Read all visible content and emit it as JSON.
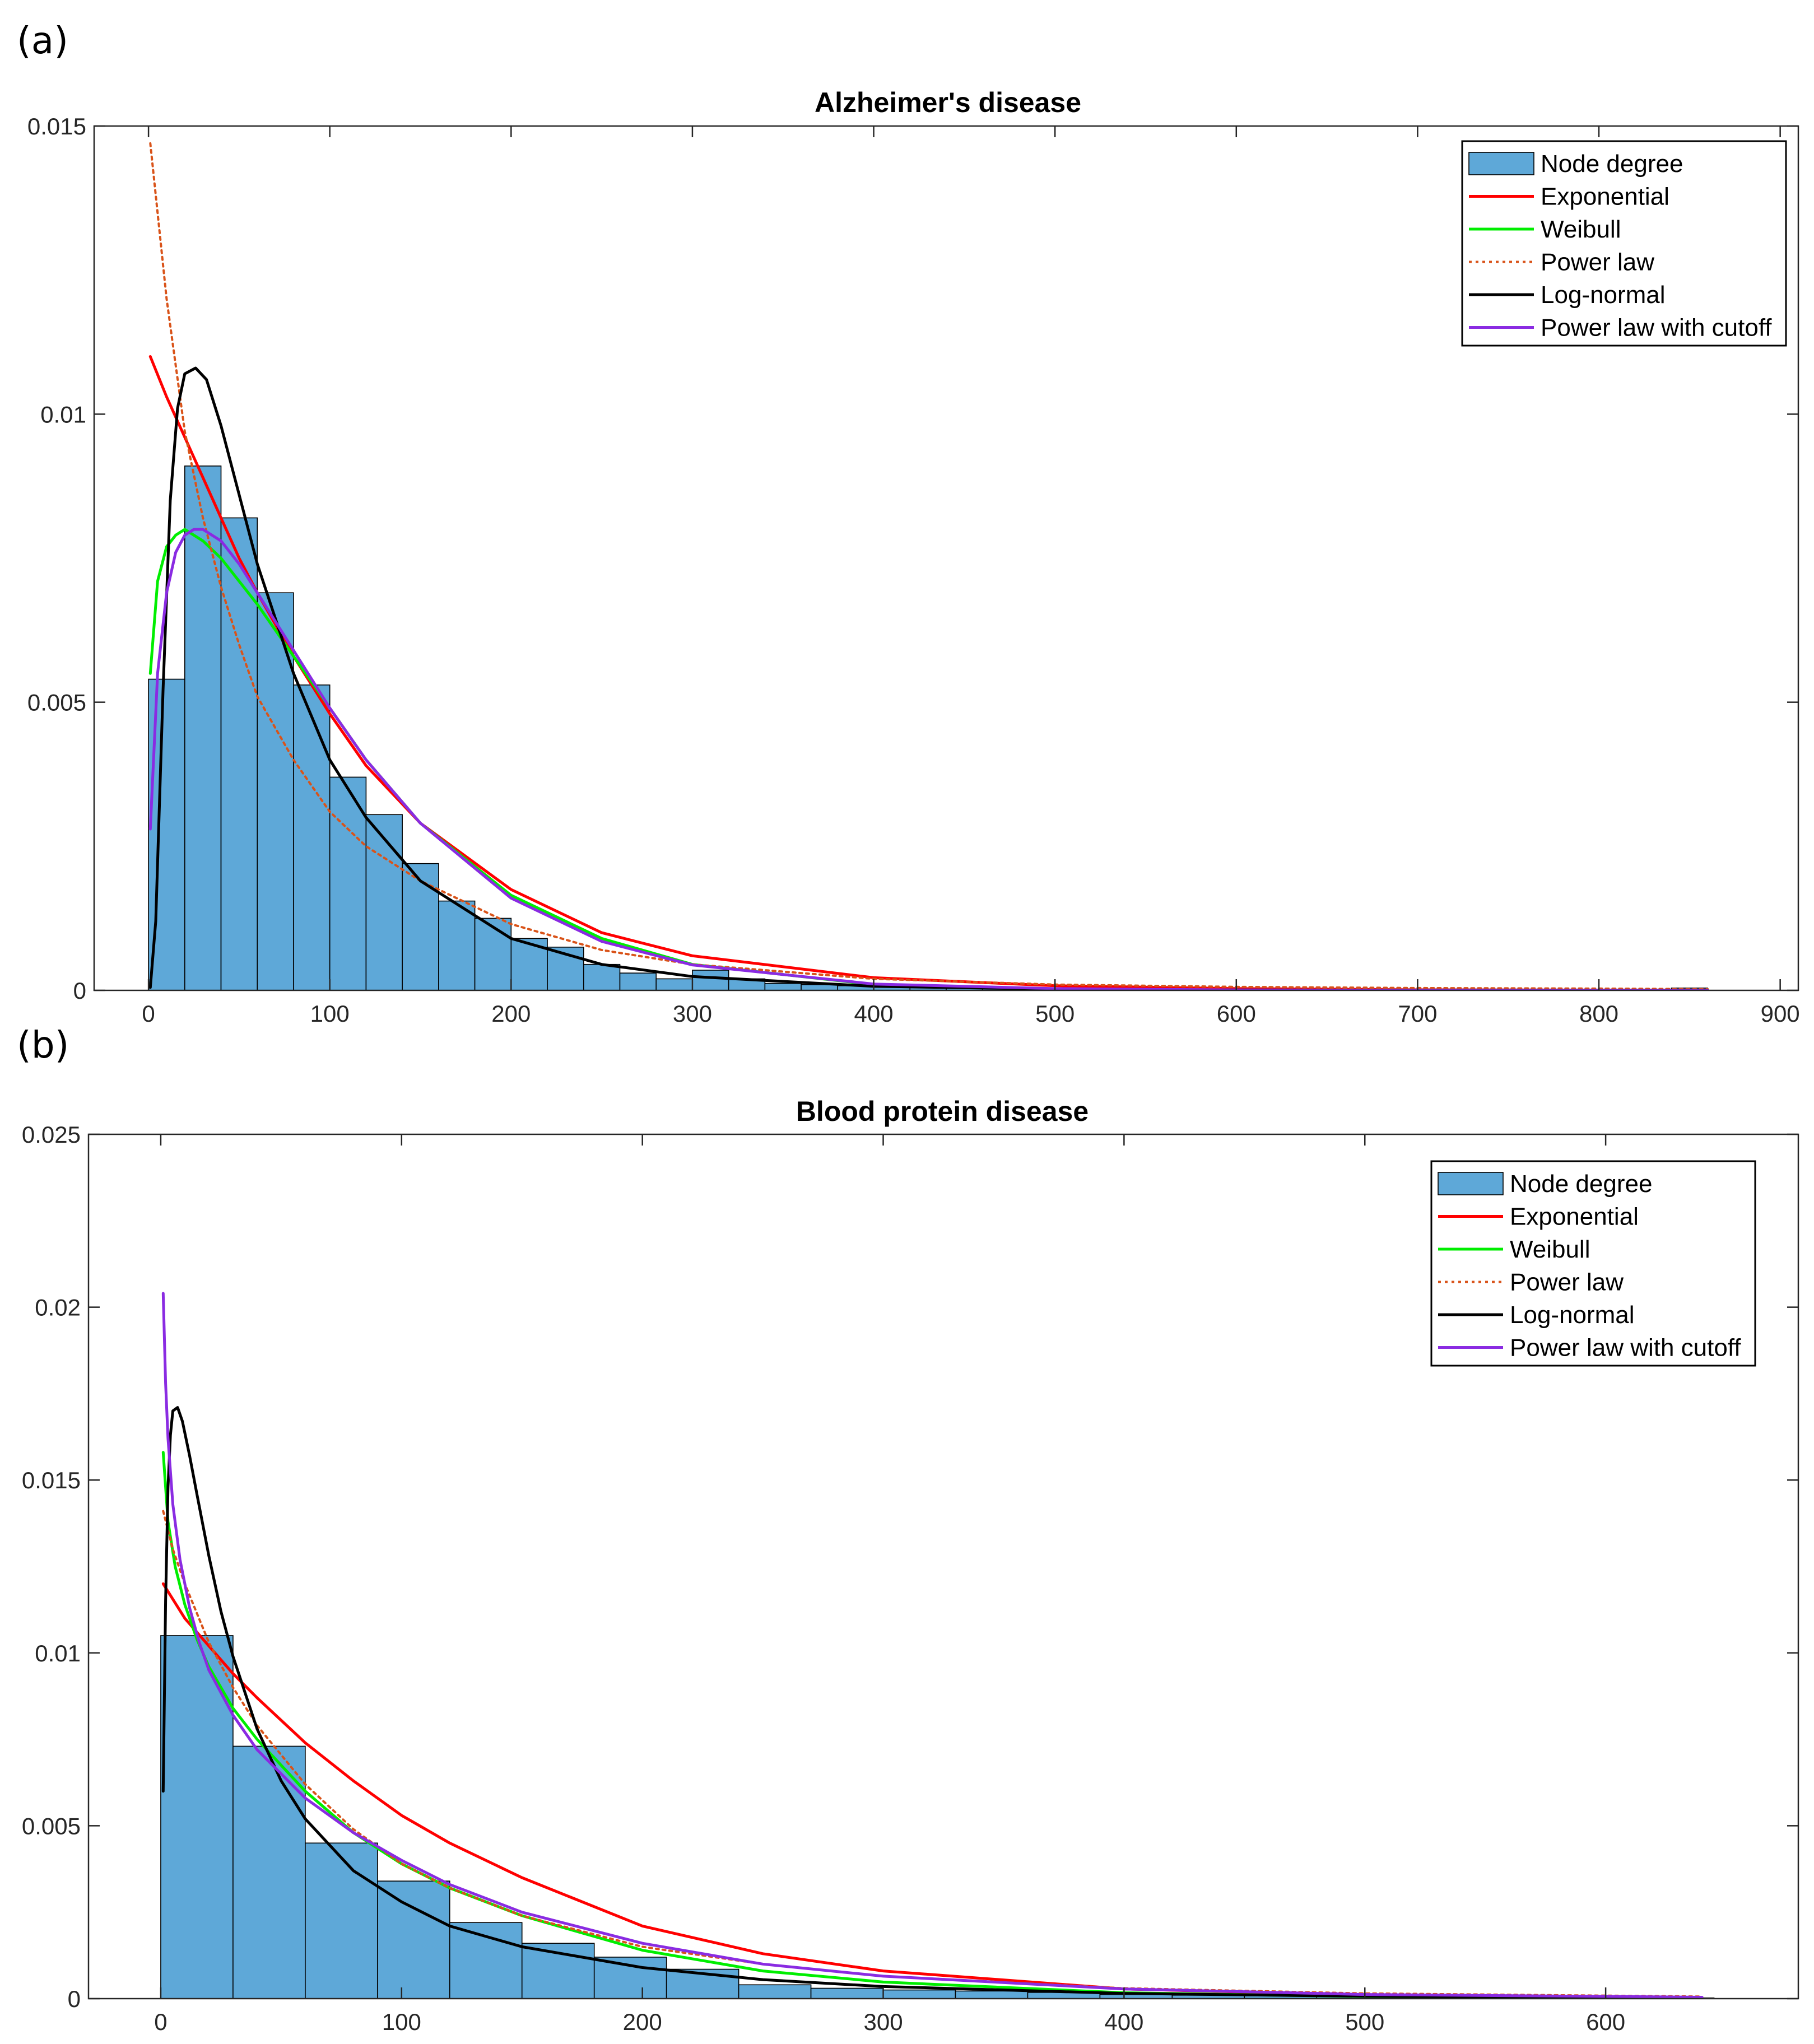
{
  "chart_data": [
    {
      "panel_label": "(a)",
      "type": "bar",
      "title": "Alzheimer's disease",
      "xlabel": "",
      "ylabel": "",
      "xlim": [
        -30,
        910
      ],
      "ylim": [
        0,
        0.015
      ],
      "xticks": [
        0,
        100,
        200,
        300,
        400,
        500,
        600,
        700,
        800,
        900
      ],
      "yticks": [
        0,
        0.005,
        0.01,
        0.015
      ],
      "ytick_labels": [
        "0",
        "0.005",
        "0.01",
        "0.015"
      ],
      "bar_color": "#5ea8d8",
      "bins": {
        "edges": [
          0,
          20,
          40,
          60,
          80,
          100,
          120,
          140,
          160,
          180,
          200,
          220,
          240,
          260,
          280,
          300,
          320,
          340,
          360,
          380,
          400,
          420,
          440,
          460,
          480,
          500,
          520,
          540,
          560,
          580,
          600,
          620,
          640,
          660,
          680,
          700,
          720,
          740,
          760,
          780,
          800,
          820,
          840,
          860
        ],
        "values": [
          0.0054,
          0.0091,
          0.0082,
          0.0069,
          0.0053,
          0.0037,
          0.00305,
          0.0022,
          0.00155,
          0.00125,
          0.0009,
          0.00075,
          0.00045,
          0.0003,
          0.0002,
          0.00035,
          0.0002,
          0.00012,
          0.0001,
          8e-05,
          7e-05,
          5e-05,
          4e-05,
          3e-05,
          3e-05,
          2e-05,
          2e-05,
          2e-05,
          1e-05,
          1e-05,
          1e-05,
          1e-05,
          1e-05,
          1e-05,
          1e-05,
          1e-05,
          1e-05,
          1e-05,
          1e-05,
          1e-05,
          1e-05,
          1e-05,
          4e-05
        ]
      },
      "legend": {
        "position": "top-right",
        "entries": [
          {
            "label": "Node degree",
            "kind": "patch",
            "color": "#5ea8d8"
          },
          {
            "label": "Exponential",
            "kind": "line",
            "color": "#ff0000"
          },
          {
            "label": "Weibull",
            "kind": "line",
            "color": "#00ee00"
          },
          {
            "label": "Power law",
            "kind": "dotted",
            "color": "#d95319"
          },
          {
            "label": "Log-normal",
            "kind": "line",
            "color": "#000000"
          },
          {
            "label": "Power law with cutoff",
            "kind": "line",
            "color": "#8a2be2"
          }
        ]
      },
      "series": [
        {
          "name": "Exponential",
          "color": "#ff0000",
          "style": "solid",
          "x": [
            1,
            10,
            20,
            30,
            40,
            50,
            60,
            80,
            100,
            120,
            150,
            200,
            250,
            300,
            400,
            500,
            600,
            700,
            800,
            860
          ],
          "y": [
            0.011,
            0.0103,
            0.0096,
            0.0089,
            0.0082,
            0.0075,
            0.0069,
            0.0058,
            0.0048,
            0.0039,
            0.0029,
            0.00175,
            0.001,
            0.0006,
            0.00022,
            8e-05,
            3e-05,
            1e-05,
            4e-06,
            2e-06
          ]
        },
        {
          "name": "Weibull",
          "color": "#00ee00",
          "style": "solid",
          "x": [
            1,
            5,
            10,
            15,
            20,
            30,
            40,
            60,
            80,
            100,
            120,
            150,
            200,
            250,
            300,
            400,
            500,
            600,
            700,
            860
          ],
          "y": [
            0.0055,
            0.0071,
            0.0077,
            0.0079,
            0.008,
            0.0078,
            0.0075,
            0.0067,
            0.0058,
            0.0049,
            0.004,
            0.0029,
            0.00165,
            0.0009,
            0.00045,
            0.0001,
            2e-05,
            5e-06,
            1e-06,
            1e-07
          ]
        },
        {
          "name": "Power law",
          "color": "#d95319",
          "style": "dotted",
          "x": [
            1,
            10,
            20,
            30,
            40,
            50,
            60,
            80,
            100,
            120,
            150,
            200,
            250,
            300,
            400,
            500,
            600,
            700,
            800,
            860
          ],
          "y": [
            0.0147,
            0.012,
            0.0097,
            0.0082,
            0.007,
            0.006,
            0.0051,
            0.004,
            0.0031,
            0.0025,
            0.0019,
            0.00115,
            0.0007,
            0.00045,
            0.0002,
            0.0001,
            6e-05,
            4e-05,
            3e-05,
            2e-05
          ]
        },
        {
          "name": "Log-normal",
          "color": "#000000",
          "style": "solid",
          "x": [
            1,
            4,
            8,
            12,
            16,
            20,
            26,
            32,
            40,
            50,
            60,
            80,
            100,
            120,
            150,
            200,
            250,
            300,
            400,
            500,
            600,
            800,
            860
          ],
          "y": [
            5e-05,
            0.0012,
            0.0052,
            0.0085,
            0.0101,
            0.0107,
            0.0108,
            0.0106,
            0.0098,
            0.0086,
            0.0074,
            0.0055,
            0.004,
            0.003,
            0.0019,
            0.0009,
            0.00045,
            0.00024,
            7e-05,
            2e-05,
            7e-06,
            1e-06,
            5e-07
          ]
        },
        {
          "name": "Power law with cutoff",
          "color": "#8a2be2",
          "style": "solid",
          "x": [
            1,
            5,
            10,
            15,
            20,
            25,
            30,
            40,
            50,
            60,
            80,
            100,
            120,
            150,
            200,
            250,
            300,
            400,
            500,
            600,
            700,
            860
          ],
          "y": [
            0.0028,
            0.0055,
            0.0069,
            0.0076,
            0.0079,
            0.008,
            0.008,
            0.0078,
            0.0074,
            0.0069,
            0.0059,
            0.0049,
            0.004,
            0.0029,
            0.0016,
            0.00085,
            0.00044,
            0.00011,
            3e-05,
            8e-06,
            2e-06,
            2e-07
          ]
        }
      ]
    },
    {
      "panel_label": "(b)",
      "type": "bar",
      "title": "Blood protein disease",
      "xlabel": "",
      "ylabel": "",
      "xlim": [
        -30,
        680
      ],
      "ylim": [
        0,
        0.025
      ],
      "xticks": [
        0,
        100,
        200,
        300,
        400,
        500,
        600
      ],
      "yticks": [
        0,
        0.005,
        0.01,
        0.015,
        0.02,
        0.025
      ],
      "ytick_labels": [
        "0",
        "0.005",
        "0.01",
        "0.015",
        "0.02",
        "0.025"
      ],
      "bar_color": "#5ea8d8",
      "bins": {
        "edges": [
          0,
          30,
          60,
          90,
          120,
          150,
          180,
          210,
          240,
          270,
          300,
          330,
          360,
          390,
          420,
          450,
          480,
          510,
          540,
          570,
          600,
          630,
          645
        ],
        "values": [
          0.0105,
          0.0073,
          0.0045,
          0.0034,
          0.0022,
          0.0016,
          0.0012,
          0.00085,
          0.0004,
          0.0003,
          0.00025,
          0.00022,
          0.00018,
          0.00012,
          0.0001,
          8e-05,
          6e-05,
          5e-05,
          4e-05,
          3e-05,
          2e-05,
          2e-05
        ]
      },
      "legend": {
        "position": "top-right",
        "entries": [
          {
            "label": "Node degree",
            "kind": "patch",
            "color": "#5ea8d8"
          },
          {
            "label": "Exponential",
            "kind": "line",
            "color": "#ff0000"
          },
          {
            "label": "Weibull",
            "kind": "line",
            "color": "#00ee00"
          },
          {
            "label": "Power law",
            "kind": "dotted",
            "color": "#d95319"
          },
          {
            "label": "Log-normal",
            "kind": "line",
            "color": "#000000"
          },
          {
            "label": "Power law with cutoff",
            "kind": "line",
            "color": "#8a2be2"
          }
        ]
      },
      "series": [
        {
          "name": "Exponential",
          "color": "#ff0000",
          "style": "solid",
          "x": [
            1,
            10,
            20,
            30,
            40,
            60,
            80,
            100,
            120,
            150,
            200,
            250,
            300,
            400,
            500,
            640
          ],
          "y": [
            0.012,
            0.011,
            0.0102,
            0.0094,
            0.0087,
            0.0074,
            0.0063,
            0.0053,
            0.0045,
            0.0035,
            0.0021,
            0.0013,
            0.0008,
            0.00028,
            0.0001,
            2e-05
          ]
        },
        {
          "name": "Weibull",
          "color": "#00ee00",
          "style": "solid",
          "x": [
            1,
            3,
            6,
            10,
            15,
            20,
            30,
            40,
            60,
            80,
            100,
            120,
            150,
            200,
            250,
            300,
            400,
            500,
            640
          ],
          "y": [
            0.0158,
            0.0138,
            0.0125,
            0.0114,
            0.0104,
            0.0096,
            0.0084,
            0.0075,
            0.006,
            0.0048,
            0.0039,
            0.0032,
            0.0024,
            0.0014,
            0.0008,
            0.00048,
            0.00017,
            6e-05,
            1.5e-05
          ]
        },
        {
          "name": "Power law",
          "color": "#d95319",
          "style": "dotted",
          "x": [
            1,
            5,
            10,
            20,
            30,
            40,
            60,
            80,
            100,
            120,
            150,
            200,
            250,
            300,
            400,
            500,
            640
          ],
          "y": [
            0.0141,
            0.013,
            0.012,
            0.0103,
            0.009,
            0.0079,
            0.0062,
            0.0049,
            0.0039,
            0.0032,
            0.0024,
            0.0015,
            0.001,
            0.00065,
            0.0003,
            0.00015,
            6e-05
          ]
        },
        {
          "name": "Log-normal",
          "color": "#000000",
          "style": "solid",
          "x": [
            1,
            2,
            3,
            4,
            5,
            7,
            9,
            12,
            15,
            20,
            25,
            30,
            40,
            50,
            60,
            80,
            100,
            120,
            150,
            200,
            250,
            300,
            400,
            500,
            640
          ],
          "y": [
            0.006,
            0.0115,
            0.0148,
            0.0163,
            0.017,
            0.0171,
            0.0167,
            0.0157,
            0.0146,
            0.0128,
            0.0112,
            0.0099,
            0.0078,
            0.0063,
            0.0052,
            0.0037,
            0.0028,
            0.0021,
            0.0015,
            0.0009,
            0.00055,
            0.00035,
            0.00015,
            7e-05,
            2e-05
          ]
        },
        {
          "name": "Power law with cutoff",
          "color": "#8a2be2",
          "style": "solid",
          "x": [
            1,
            2,
            3,
            5,
            8,
            12,
            16,
            20,
            30,
            40,
            60,
            80,
            100,
            120,
            150,
            200,
            250,
            300,
            400,
            500,
            640
          ],
          "y": [
            0.0204,
            0.0178,
            0.0162,
            0.0143,
            0.0127,
            0.0113,
            0.0103,
            0.0095,
            0.0082,
            0.0072,
            0.0058,
            0.0048,
            0.004,
            0.0033,
            0.0025,
            0.0016,
            0.001,
            0.00065,
            0.00028,
            0.00012,
            4e-05
          ]
        }
      ]
    }
  ]
}
